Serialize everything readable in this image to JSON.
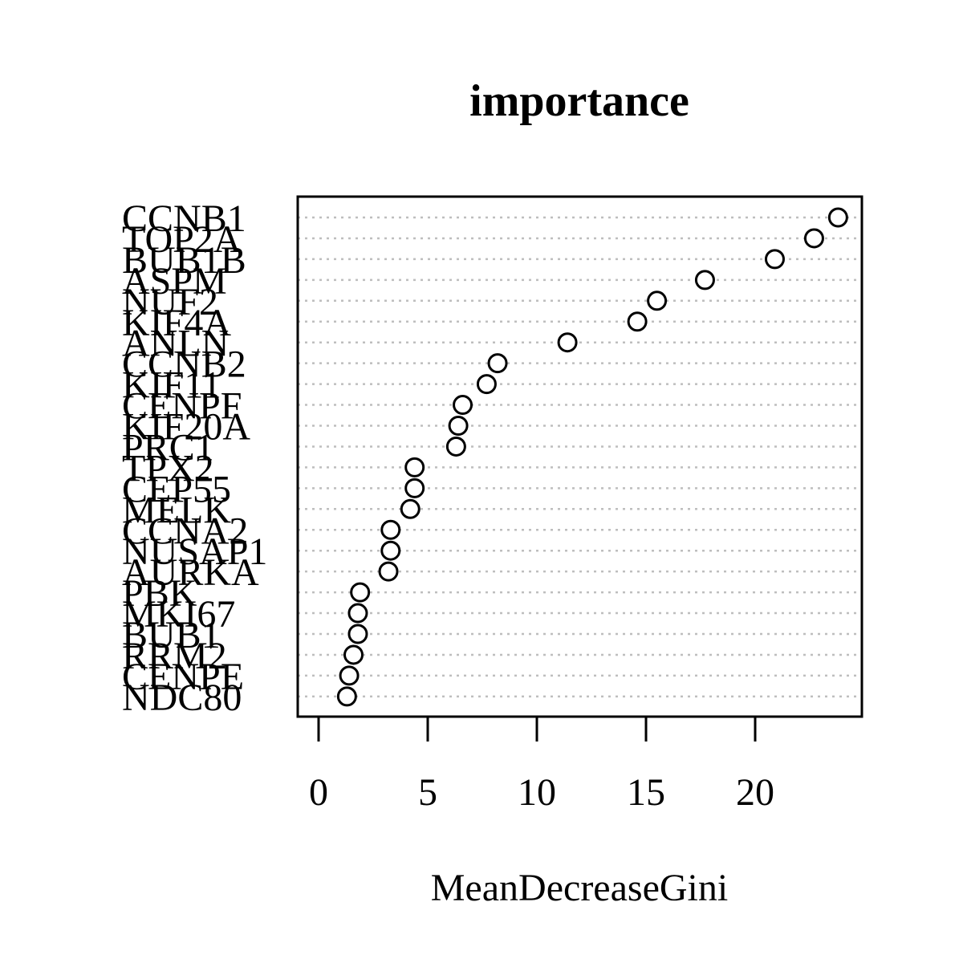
{
  "chart_data": {
    "type": "scatter",
    "title": "importance",
    "xlabel": "MeanDecreaseGini",
    "ylabel": "",
    "xlim": [
      0,
      25
    ],
    "xticks": [
      0,
      5,
      10,
      15,
      20
    ],
    "grid": true,
    "categories": [
      "CCNB1",
      "TOP2A",
      "BUB1B",
      "ASPM",
      "NUF2",
      "KIF4A",
      "ANLN",
      "CCNB2",
      "KIF11",
      "CENPF",
      "KIF20A",
      "PRC1",
      "TPX2",
      "CEP55",
      "MELK",
      "CCNA2",
      "NUSAP1",
      "AURKA",
      "PBK",
      "MKI67",
      "BUB1",
      "RRM2",
      "CENPE",
      "NDC80"
    ],
    "values": [
      23.8,
      22.7,
      20.9,
      17.7,
      15.5,
      14.6,
      11.4,
      8.2,
      7.7,
      6.6,
      6.4,
      6.3,
      4.4,
      4.4,
      4.2,
      3.3,
      3.3,
      3.2,
      1.9,
      1.8,
      1.8,
      1.6,
      1.4,
      1.3
    ]
  }
}
